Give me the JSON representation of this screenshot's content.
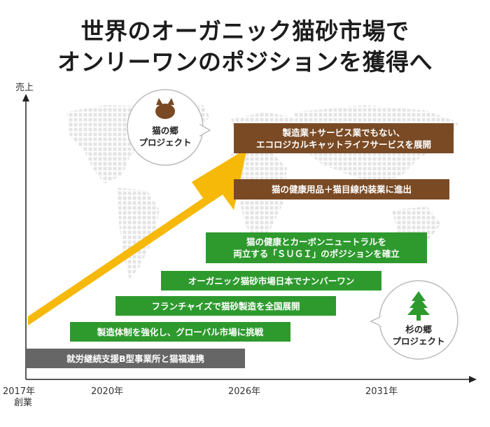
{
  "title": {
    "line1": "世界のオーガニック猫砂市場で",
    "line2": "オンリーワンのポジションを獲得へ"
  },
  "axes": {
    "y_label": "売上",
    "x_ticks": [
      "2017年",
      "2020年",
      "2026年",
      "2031年"
    ],
    "x_origin_note": "創業"
  },
  "milestones": [
    {
      "line1": "製造業＋サービス業でもない、",
      "line2": "エコロジカルキャットライフサービスを展開",
      "color": "#7a4a24"
    },
    {
      "line1": "猫の健康用品＋猫目線内装業に進出",
      "line2": "",
      "color": "#7a4a24"
    },
    {
      "line1": "猫の健康とカーボンニュートラルを",
      "line2": "両立する「ＳＵＧＩ」のポジションを確立",
      "color": "#2e9a2e"
    },
    {
      "line1": "オーガニック猫砂市場日本でナンバーワン",
      "line2": "",
      "color": "#2e9a2e"
    },
    {
      "line1": "フランチャイズで猫砂製造を全国展開",
      "line2": "",
      "color": "#2e9a2e"
    },
    {
      "line1": "製造体制を強化し、グローバル市場に挑戦",
      "line2": "",
      "color": "#2e9a2e"
    },
    {
      "line1": "就労継続支援B型事業所と猫福連携",
      "line2": "",
      "color": "#666666"
    }
  ],
  "bubbles": {
    "cat": {
      "line1": "猫の郷",
      "line2": "プロジェクト",
      "icon": "cat-face-icon",
      "icon_color": "#7a4a24"
    },
    "cedar": {
      "line1": "杉の郷",
      "line2": "プロジェクト",
      "icon": "cedar-tree-icon",
      "icon_color": "#2e9a2e"
    }
  },
  "colors": {
    "arrow": "#f6b90a",
    "brown": "#7a4a24",
    "green": "#2e9a2e",
    "gray": "#666666",
    "map": "#e6e6e6"
  }
}
